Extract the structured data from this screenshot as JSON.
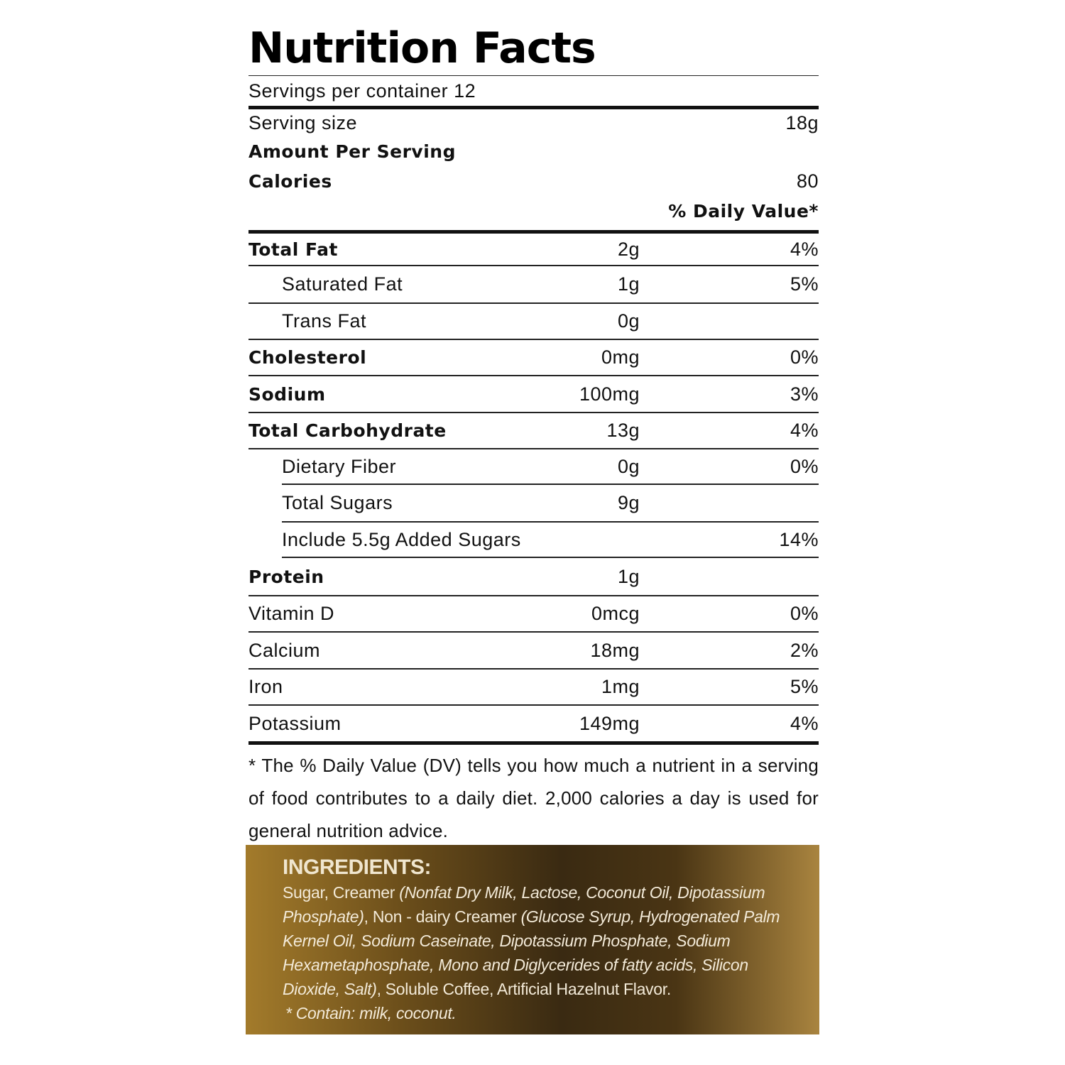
{
  "title": "Nutrition Facts",
  "servings": "Servings per container 12",
  "serving_size": {
    "label": "Serving size",
    "value": "18g"
  },
  "amount_per_serving": "Amount Per Serving",
  "calories": {
    "label": "Calories",
    "value": "80"
  },
  "daily_value_header": "% Daily Value*",
  "nutrients": [
    {
      "name": "Total Fat",
      "amount": "2g",
      "dv": "4%"
    },
    {
      "name": "Saturated Fat",
      "amount": "1g",
      "dv": "5%"
    },
    {
      "name": "Trans Fat",
      "amount": "0g",
      "dv": ""
    },
    {
      "name": "Cholesterol",
      "amount": "0mg",
      "dv": "0%"
    },
    {
      "name": "Sodium",
      "amount": "100mg",
      "dv": "3%"
    },
    {
      "name": "Total Carbohydrate",
      "amount": "13g",
      "dv": "4%"
    },
    {
      "name": "Dietary Fiber",
      "amount": "0g",
      "dv": "0%"
    },
    {
      "name": "Total Sugars",
      "amount": "9g",
      "dv": ""
    },
    {
      "name": "Include 5.5g Added Sugars",
      "amount": "",
      "dv": "14%"
    },
    {
      "name": "Protein",
      "amount": "1g",
      "dv": ""
    },
    {
      "name": "Vitamin D",
      "amount": "0mcg",
      "dv": "0%"
    },
    {
      "name": "Calcium",
      "amount": "18mg",
      "dv": "2%"
    },
    {
      "name": "Iron",
      "amount": "1mg",
      "dv": "5%"
    },
    {
      "name": "Potassium",
      "amount": "149mg",
      "dv": "4%"
    }
  ],
  "footnote": "* The % Daily Value (DV) tells you how much a nutrient in a serving of food contributes to a daily diet. 2,000 calories a day is used for general nutrition advice.",
  "ingredients": {
    "title": "INGREDIENTS:",
    "parts": [
      "Sugar, Creamer ",
      "(Nonfat Dry Milk, Lactose, Coconut Oil,  Dipotassium Phosphate)",
      ", Non - dairy Creamer ",
      "(Glucose Syrup, Hydrogenated Palm Kernel Oil, Sodium Caseinate, Dipotassium Phosphate, Sodium Hexametaphosphate, Mono and Diglycerides of fatty acids, Silicon Dioxide, Salt)",
      ", Soluble Coffee, Artificial Hazelnut Flavor."
    ],
    "allergen": "* Contain: milk, coconut."
  },
  "colors": {
    "panel_dark": "#3a2a12",
    "panel_gold": "#a9843f",
    "panel_text": "#f3ead8"
  }
}
